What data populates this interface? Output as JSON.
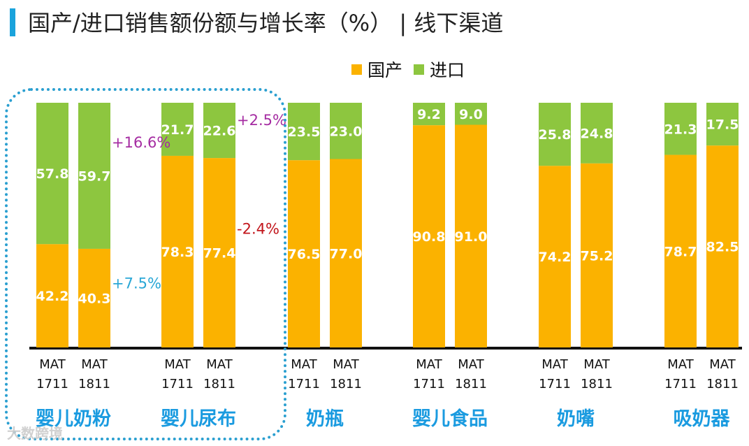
{
  "title": "国产/进口销售额份额与增长率（%） | 线下渠道",
  "watermark": "大数跨境",
  "colors": {
    "domestic": "#fbb200",
    "imported": "#8dc63f",
    "accent_blue": "#1aa3dc",
    "purple": "#a52ca2",
    "red": "#c2161c",
    "cyan": "#2aa7d6"
  },
  "chart_data": {
    "type": "bar",
    "stacked": true,
    "percent": true,
    "title": "国产/进口销售额份额与增长率（%） | 线下渠道",
    "legend": [
      "国产",
      "进口"
    ],
    "legend_position": "top-right",
    "ylim": [
      0,
      100
    ],
    "groups": [
      {
        "name": "婴儿奶粉",
        "bars": [
          {
            "label": "MAT 1711",
            "domestic": 42.2,
            "imported": 57.8
          },
          {
            "label": "MAT 1811",
            "domestic": 40.3,
            "imported": 59.7
          }
        ]
      },
      {
        "name": "婴儿尿布",
        "bars": [
          {
            "label": "MAT 1711",
            "domestic": 78.3,
            "imported": 21.7
          },
          {
            "label": "MAT 1811",
            "domestic": 77.4,
            "imported": 22.6
          }
        ]
      },
      {
        "name": "奶瓶",
        "bars": [
          {
            "label": "MAT 1711",
            "domestic": 76.5,
            "imported": 23.5
          },
          {
            "label": "MAT 1811",
            "domestic": 77.0,
            "imported": 23.0
          }
        ]
      },
      {
        "name": "婴儿食品",
        "bars": [
          {
            "label": "MAT 1711",
            "domestic": 90.8,
            "imported": 9.2
          },
          {
            "label": "MAT 1811",
            "domestic": 91.0,
            "imported": 9.0
          }
        ]
      },
      {
        "name": "奶嘴",
        "bars": [
          {
            "label": "MAT 1711",
            "domestic": 74.2,
            "imported": 25.8
          },
          {
            "label": "MAT 1811",
            "domestic": 75.2,
            "imported": 24.8
          }
        ]
      },
      {
        "name": "吸奶器",
        "bars": [
          {
            "label": "MAT 1711",
            "domestic": 78.7,
            "imported": 21.3
          },
          {
            "label": "MAT 1811",
            "domestic": 82.5,
            "imported": 17.5
          }
        ]
      }
    ],
    "annotations": [
      {
        "group": "婴儿奶粉",
        "series": "imported",
        "text": "+16.6%",
        "color": "purple"
      },
      {
        "group": "婴儿奶粉",
        "series": "domestic",
        "text": "+7.5%",
        "color": "cyan"
      },
      {
        "group": "婴儿尿布",
        "series": "imported",
        "text": "+2.5%",
        "color": "purple"
      },
      {
        "group": "婴儿尿布",
        "series": "domestic",
        "text": "-2.4%",
        "color": "red"
      }
    ],
    "highlight": "婴儿奶粉, 婴儿尿布"
  }
}
